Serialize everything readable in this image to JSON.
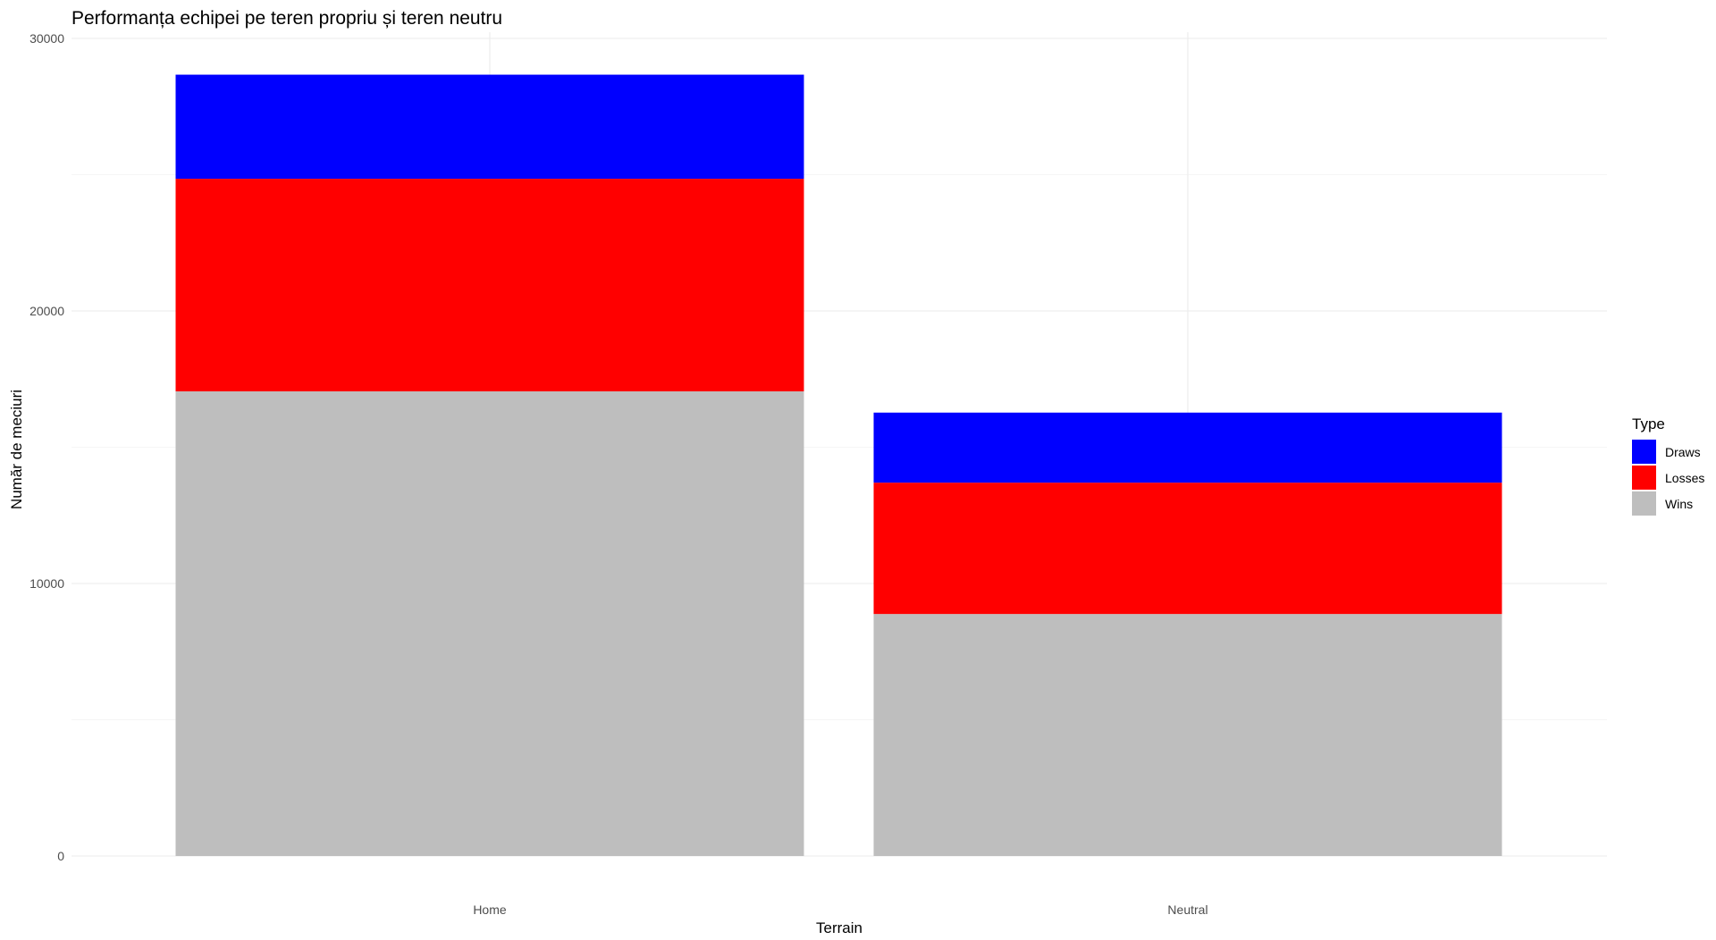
{
  "chart_data": {
    "type": "bar",
    "stacked": true,
    "title": "Performanța echipei pe teren propriu și teren neutru",
    "xlabel": "Terrain",
    "ylabel": "Număr de meciuri",
    "categories": [
      "Home",
      "Neutral"
    ],
    "series": [
      {
        "name": "Wins",
        "color": "#bebebe",
        "values": [
          17050,
          8880
        ]
      },
      {
        "name": "Losses",
        "color": "#ff0000",
        "values": [
          7800,
          4820
        ]
      },
      {
        "name": "Draws",
        "color": "#0000ff",
        "values": [
          3820,
          2570
        ]
      }
    ],
    "ylim": [
      0,
      30000
    ],
    "yticks": [
      "0",
      "10000",
      "20000",
      "30000"
    ],
    "grid": true,
    "legend": {
      "title": "Type",
      "position": "right",
      "items": [
        {
          "label": "Draws",
          "color": "#0000ff"
        },
        {
          "label": "Losses",
          "color": "#ff0000"
        },
        {
          "label": "Wins",
          "color": "#bebebe"
        }
      ]
    }
  }
}
